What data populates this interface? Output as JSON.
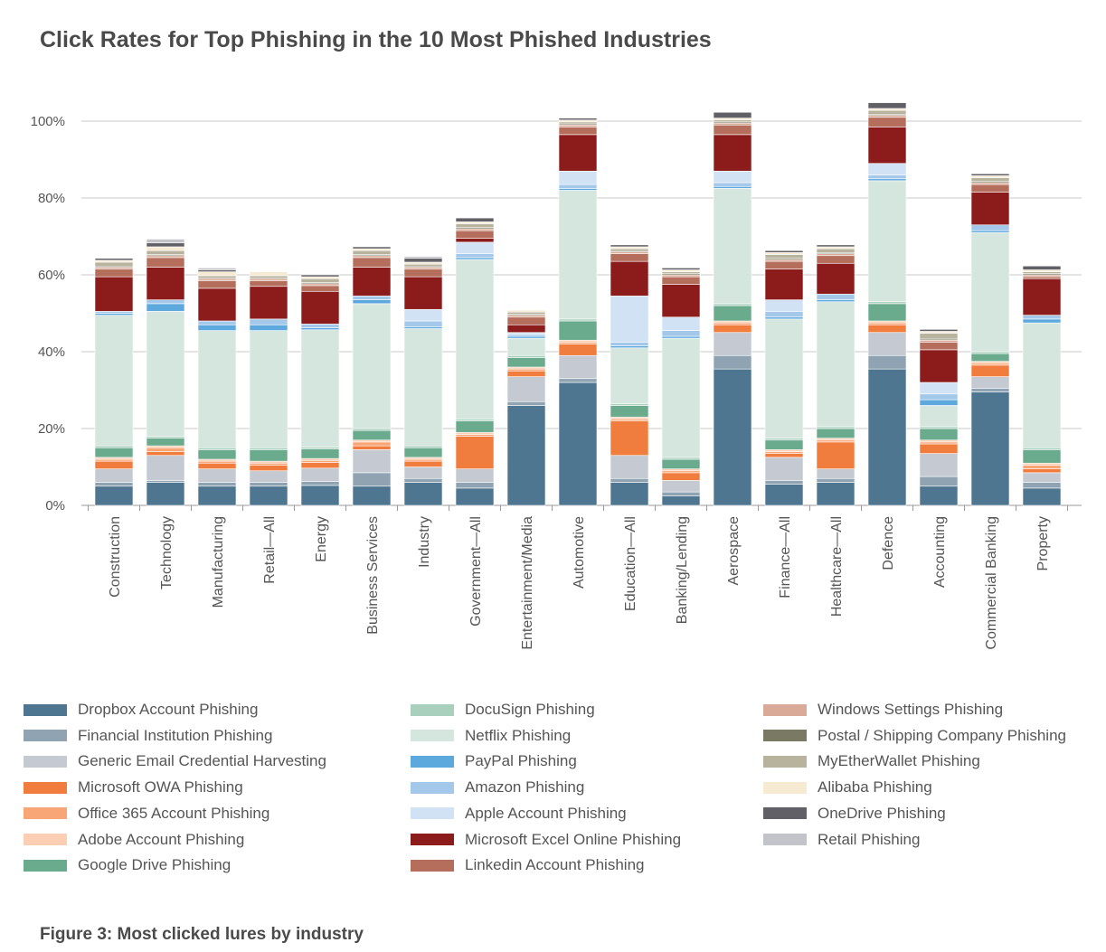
{
  "title": "Click Rates for Top Phishing in the 10 Most Phished Industries",
  "footer": "Figure 3: Most clicked lures by industry",
  "chart_data": {
    "type": "bar",
    "stacked": true,
    "ylim": [
      0,
      100
    ],
    "yticks": [
      0,
      20,
      40,
      60,
      80,
      100
    ],
    "ytick_labels": [
      "0%",
      "20%",
      "40%",
      "60%",
      "80%",
      "100%"
    ],
    "grid": true,
    "legend_position": "bottom",
    "categories": [
      "Construction",
      "Technology",
      "Manufacturing",
      "Retail—All",
      "Energy",
      "Business Services",
      "Industry",
      "Government—All",
      "Entertainment/Media",
      "Automotive",
      "Education—All",
      "Banking/Lending",
      "Aerospace",
      "Finance—All",
      "Healthcare—All",
      "Defence",
      "Accounting",
      "Commercial Banking",
      "Property"
    ],
    "series": [
      {
        "name": "Dropbox Account Phishing",
        "color": "#4f7690",
        "values": [
          5,
          6,
          5,
          5,
          5.2,
          5,
          6,
          4.5,
          26,
          32,
          6,
          2.5,
          35.5,
          5.5,
          6,
          35.5,
          5,
          29.5,
          4.5
        ]
      },
      {
        "name": "Financial Institution Phishing",
        "color": "#8fa3b2",
        "values": [
          1,
          0.5,
          1,
          1,
          1,
          3.5,
          1,
          1.5,
          1,
          1,
          1,
          1,
          3.5,
          1,
          1,
          3.5,
          2.5,
          1,
          1.5
        ]
      },
      {
        "name": "Generic Email Credential Harvesting",
        "color": "#c4c9d2",
        "values": [
          3.5,
          6.5,
          3.5,
          3,
          3.5,
          6,
          3,
          3.5,
          6.5,
          6,
          6,
          3,
          6,
          6,
          2.5,
          6,
          6,
          3,
          2.5
        ]
      },
      {
        "name": "Microsoft OWA Phishing",
        "color": "#f07c3e",
        "values": [
          2,
          1,
          1.5,
          1.5,
          1.5,
          1,
          1.5,
          8.5,
          1.5,
          3,
          9,
          2,
          2,
          1,
          7,
          2,
          2.5,
          3,
          1
        ]
      },
      {
        "name": "Office 365 Account Phishing",
        "color": "#f9a677",
        "values": [
          0.5,
          1,
          0.5,
          0.5,
          0.5,
          1,
          0.5,
          0.5,
          0.5,
          0.5,
          0.5,
          0.5,
          0.5,
          0.5,
          0.5,
          0.5,
          0.5,
          0.5,
          1
        ]
      },
      {
        "name": "Adobe Account Phishing",
        "color": "#fccfb4",
        "values": [
          0.5,
          0.5,
          0.5,
          0.5,
          0.5,
          0.5,
          0.5,
          0.5,
          0.5,
          0.5,
          0.5,
          0.5,
          0.5,
          0.5,
          0.5,
          0.5,
          0.5,
          0.5,
          0.5
        ]
      },
      {
        "name": "Google Drive Phishing",
        "color": "#6aab8e",
        "values": [
          2.5,
          2,
          2.5,
          3,
          2.5,
          2.5,
          2.5,
          3,
          2.5,
          5,
          3,
          2.5,
          4,
          2.5,
          2.5,
          4.5,
          3,
          2,
          3.5
        ]
      },
      {
        "name": "DocuSign Phishing",
        "color": "#a9cfbd",
        "values": [
          0.5,
          0.5,
          0.5,
          0.5,
          0.5,
          0.5,
          0.5,
          0.5,
          0.5,
          0.5,
          0.5,
          0.5,
          0.5,
          0.5,
          0.5,
          0.5,
          0.5,
          0.5,
          0.5
        ]
      },
      {
        "name": "Netflix Phishing",
        "color": "#d4e6dd",
        "values": [
          34,
          32.5,
          30.5,
          30.5,
          30.5,
          32.5,
          30.5,
          41.5,
          4.5,
          33.5,
          14.5,
          31,
          30,
          31,
          32.5,
          31.5,
          5.5,
          31,
          32.5
        ]
      },
      {
        "name": "PayPal Phishing",
        "color": "#5da9de",
        "values": [
          0.5,
          2,
          1.5,
          1.5,
          0.5,
          1,
          0.5,
          0.5,
          0.5,
          0.5,
          0.5,
          0.5,
          0.5,
          0.5,
          0.5,
          0.5,
          1.5,
          0.5,
          1
        ]
      },
      {
        "name": "Amazon Phishing",
        "color": "#a3c8ea",
        "values": [
          0.5,
          1,
          1,
          1.5,
          1,
          1,
          1.5,
          1,
          0.5,
          1,
          1,
          1.5,
          1,
          1.5,
          1.5,
          1,
          1.5,
          1.5,
          1
        ]
      },
      {
        "name": "Apple Account Phishing",
        "color": "#d0e2f4",
        "values": [
          0,
          0,
          0,
          0,
          0,
          0,
          3,
          3,
          0.5,
          3.5,
          12,
          3.5,
          3,
          3,
          0,
          3,
          3,
          0,
          0
        ]
      },
      {
        "name": "Microsoft Excel Online Phishing",
        "color": "#8c1c1c",
        "values": [
          9,
          8.5,
          8.5,
          8.5,
          8.5,
          7.5,
          8.5,
          1,
          2,
          9.5,
          9,
          8.5,
          9.5,
          8,
          8,
          9.5,
          8.5,
          8.5,
          9.5
        ]
      },
      {
        "name": "Linkedin Account Phishing",
        "color": "#b56e5c",
        "values": [
          2,
          2.5,
          2,
          1.5,
          1.5,
          2.5,
          2,
          2,
          2,
          2,
          2,
          2,
          2.5,
          2,
          2,
          2.5,
          2,
          2,
          0.5
        ]
      },
      {
        "name": "Windows Settings Phishing",
        "color": "#d9aa97",
        "values": [
          0.5,
          0.5,
          0.5,
          0.5,
          0.5,
          0.5,
          0.5,
          0.5,
          0.5,
          0.5,
          0.5,
          0.5,
          0.5,
          0.5,
          0.5,
          0.5,
          0.5,
          0.5,
          0.5
        ]
      },
      {
        "name": "Postal / Shipping Company Phishing",
        "color": "#7a7a64",
        "values": [
          0.3,
          0.3,
          0.3,
          0.3,
          0.3,
          0.3,
          0.3,
          0.3,
          0.3,
          0.3,
          0.3,
          0.3,
          0.3,
          0.3,
          0.3,
          0.3,
          0.3,
          0.3,
          0.3
        ]
      },
      {
        "name": "MyEtherWallet Phishing",
        "color": "#b8b39c",
        "values": [
          1,
          1,
          0.5,
          0.5,
          1,
          1,
          0.5,
          1,
          0.5,
          0.5,
          0.5,
          0.5,
          0.5,
          1,
          1,
          1,
          1.5,
          1,
          0.5
        ]
      },
      {
        "name": "Alibaba Phishing",
        "color": "#f7ead3",
        "values": [
          0.5,
          1,
          1,
          1,
          0.5,
          0.5,
          0.5,
          0.5,
          0.5,
          0.5,
          0.5,
          0.5,
          0.5,
          0.5,
          0.5,
          0.5,
          0.5,
          0.5,
          0.5
        ]
      },
      {
        "name": "OneDrive Phishing",
        "color": "#606066",
        "values": [
          0.5,
          1,
          0.5,
          0,
          0.5,
          0.5,
          1,
          1,
          0,
          0.5,
          0.5,
          0.5,
          1.5,
          0.5,
          0.5,
          1.5,
          0.5,
          0.5,
          1
        ]
      },
      {
        "name": "Retail Phishing",
        "color": "#c3c3ca",
        "values": [
          0,
          1,
          0.5,
          0,
          0,
          0,
          0.5,
          0,
          0,
          0,
          0,
          0,
          0,
          0,
          0,
          0,
          0,
          0,
          0
        ]
      }
    ]
  }
}
